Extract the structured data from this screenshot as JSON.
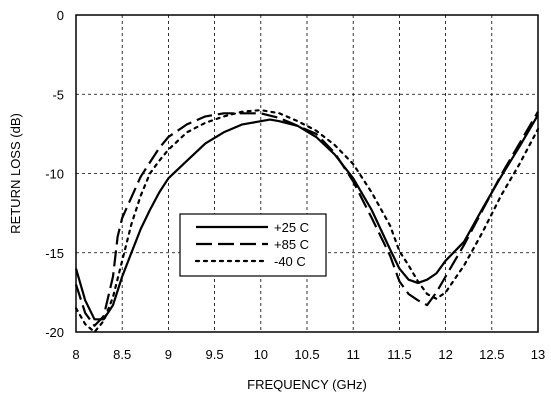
{
  "chart_data": {
    "type": "line",
    "title": "",
    "xlabel": "FREQUENCY (GHz)",
    "ylabel": "RETURN LOSS (dB)",
    "xlim": [
      8,
      13
    ],
    "ylim": [
      -20,
      0
    ],
    "xticks": [
      8,
      8.5,
      9,
      9.5,
      10,
      10.5,
      11,
      11.5,
      12,
      12.5,
      13
    ],
    "xtick_labels": [
      "8",
      "8.5",
      "9",
      "9.5",
      "10",
      "10.5",
      "11",
      "11.5",
      "12",
      "12.5",
      "13"
    ],
    "yticks": [
      0,
      -5,
      -10,
      -15,
      -20
    ],
    "ytick_labels": [
      "0",
      "-5",
      "-10",
      "-15",
      "-20"
    ],
    "grid": true,
    "legend_position": "center",
    "series": [
      {
        "name": "+25 C",
        "style": "solid",
        "color": "#000000",
        "x": [
          8.0,
          8.1,
          8.2,
          8.3,
          8.4,
          8.5,
          8.6,
          8.7,
          8.8,
          8.9,
          9.0,
          9.2,
          9.4,
          9.6,
          9.8,
          10.0,
          10.1,
          10.2,
          10.4,
          10.6,
          10.8,
          11.0,
          11.2,
          11.4,
          11.5,
          11.6,
          11.7,
          11.8,
          11.9,
          12.0,
          12.2,
          12.4,
          12.6,
          12.8,
          13.0
        ],
        "y": [
          -16.0,
          -18.0,
          -19.2,
          -19.2,
          -18.3,
          -16.5,
          -15.0,
          -13.5,
          -12.3,
          -11.2,
          -10.3,
          -9.2,
          -8.1,
          -7.4,
          -6.9,
          -6.7,
          -6.6,
          -6.7,
          -7.0,
          -7.7,
          -8.8,
          -10.3,
          -12.3,
          -14.8,
          -16.0,
          -16.7,
          -16.9,
          -16.7,
          -16.3,
          -15.5,
          -14.3,
          -12.2,
          -10.2,
          -8.3,
          -6.3
        ]
      },
      {
        "name": "+85 C",
        "style": "dashed",
        "color": "#000000",
        "x": [
          8.0,
          8.1,
          8.2,
          8.3,
          8.4,
          8.45,
          8.5,
          8.6,
          8.7,
          8.8,
          8.9,
          9.0,
          9.2,
          9.4,
          9.6,
          9.8,
          10.0,
          10.2,
          10.4,
          10.6,
          10.8,
          11.0,
          11.2,
          11.4,
          11.5,
          11.6,
          11.7,
          11.8,
          11.9,
          12.0,
          12.2,
          12.4,
          12.6,
          12.8,
          13.0
        ],
        "y": [
          -17.0,
          -18.8,
          -19.6,
          -19.0,
          -16.5,
          -14.0,
          -12.8,
          -11.5,
          -10.2,
          -9.3,
          -8.4,
          -7.7,
          -6.9,
          -6.4,
          -6.2,
          -6.2,
          -6.2,
          -6.5,
          -7.0,
          -7.5,
          -8.7,
          -10.5,
          -12.8,
          -15.2,
          -16.8,
          -17.6,
          -18.0,
          -18.3,
          -17.5,
          -16.5,
          -14.5,
          -12.3,
          -10.1,
          -8.1,
          -6.1
        ]
      },
      {
        "name": "-40 C",
        "style": "dotted",
        "color": "#000000",
        "x": [
          8.0,
          8.1,
          8.2,
          8.3,
          8.4,
          8.5,
          8.6,
          8.7,
          8.8,
          8.9,
          9.0,
          9.2,
          9.4,
          9.6,
          9.8,
          10.0,
          10.2,
          10.4,
          10.6,
          10.8,
          11.0,
          11.2,
          11.4,
          11.5,
          11.6,
          11.7,
          11.8,
          11.9,
          12.0,
          12.2,
          12.4,
          12.6,
          12.8,
          13.0
        ],
        "y": [
          -18.5,
          -19.5,
          -20.0,
          -19.3,
          -17.8,
          -15.5,
          -13.2,
          -11.4,
          -10.0,
          -9.2,
          -8.5,
          -7.4,
          -6.8,
          -6.4,
          -6.1,
          -6.0,
          -6.2,
          -6.7,
          -7.3,
          -8.2,
          -9.4,
          -11.2,
          -13.3,
          -14.9,
          -15.8,
          -16.8,
          -17.6,
          -17.9,
          -17.5,
          -15.8,
          -13.7,
          -11.4,
          -9.4,
          -7.2
        ]
      }
    ]
  }
}
